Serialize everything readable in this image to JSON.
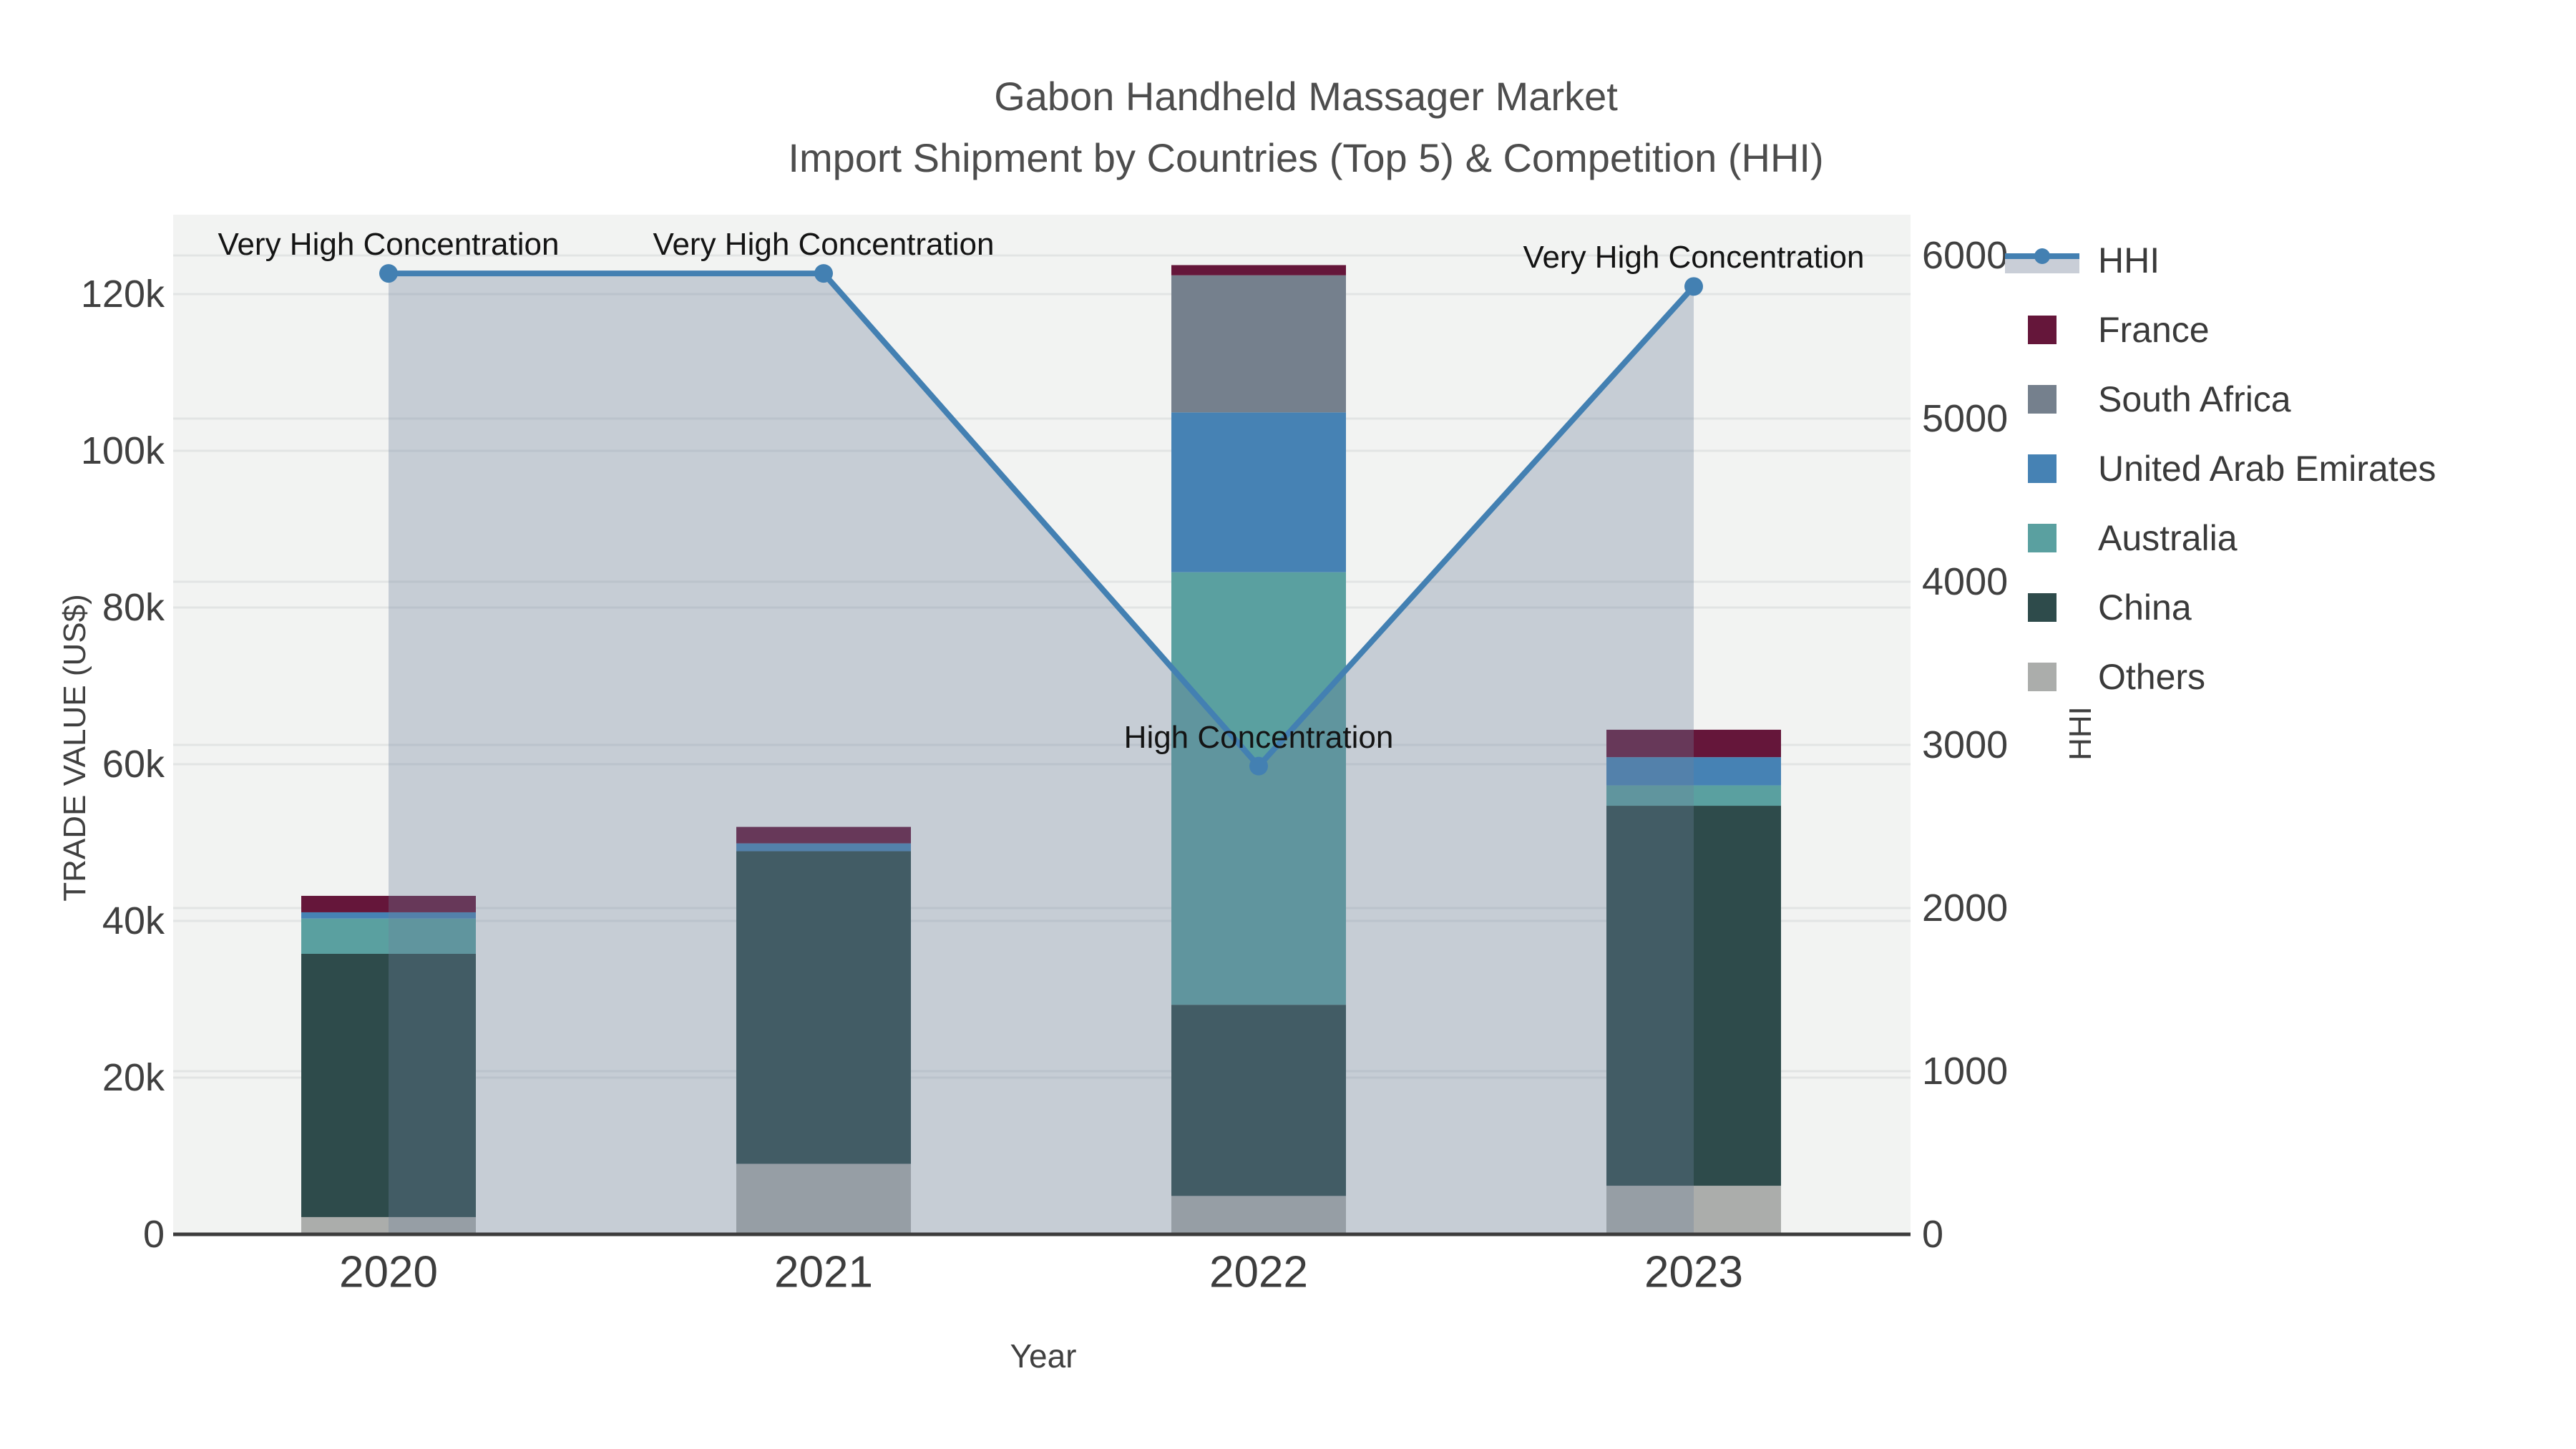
{
  "title": {
    "line1": "Gabon Handheld Massager Market",
    "line2": "Import Shipment by Countries (Top 5) & Competition (HHI)"
  },
  "axes": {
    "left": {
      "title": "TRADE VALUE (US$)",
      "ticks": [
        {
          "v": 0,
          "label": "0"
        },
        {
          "v": 20000,
          "label": "20k"
        },
        {
          "v": 40000,
          "label": "40k"
        },
        {
          "v": 60000,
          "label": "60k"
        },
        {
          "v": 80000,
          "label": "80k"
        },
        {
          "v": 100000,
          "label": "100k"
        },
        {
          "v": 120000,
          "label": "120k"
        }
      ]
    },
    "right": {
      "title": "HHI",
      "ticks": [
        {
          "v": 0,
          "label": "0"
        },
        {
          "v": 1000,
          "label": "1000"
        },
        {
          "v": 2000,
          "label": "2000"
        },
        {
          "v": 3000,
          "label": "3000"
        },
        {
          "v": 4000,
          "label": "4000"
        },
        {
          "v": 5000,
          "label": "5000"
        },
        {
          "v": 6000,
          "label": "6000"
        }
      ]
    },
    "x": {
      "title": "Year"
    }
  },
  "legend": {
    "items": [
      {
        "label": "HHI",
        "type": "line",
        "color": "#4380b2"
      },
      {
        "label": "France",
        "type": "swatch",
        "color": "#65163a"
      },
      {
        "label": "South Africa",
        "type": "swatch",
        "color": "#75808d"
      },
      {
        "label": "United Arab Emirates",
        "type": "swatch",
        "color": "#4682b4"
      },
      {
        "label": "Australia",
        "type": "swatch",
        "color": "#5aa0a0"
      },
      {
        "label": "China",
        "type": "swatch",
        "color": "#2e4b4b"
      },
      {
        "label": "Others",
        "type": "swatch",
        "color": "#abadab"
      }
    ]
  },
  "chart_data": {
    "type": "bar",
    "subtype": "stacked-bar-with-dual-axis-line",
    "title": "Gabon Handheld Massager Market — Import Shipment by Countries (Top 5) & Competition (HHI)",
    "categories": [
      "2020",
      "2021",
      "2022",
      "2023"
    ],
    "xlabel": "Year",
    "ylabel_left": "TRADE VALUE (US$)",
    "ylabel_right": "HHI",
    "ylim_left": [
      0,
      130000
    ],
    "ylim_right": [
      0,
      6250
    ],
    "grid": true,
    "legend_position": "right",
    "series": [
      {
        "name": "Others",
        "color": "#abadab",
        "values": [
          2200,
          9000,
          4900,
          6200
        ]
      },
      {
        "name": "China",
        "color": "#2e4b4b",
        "values": [
          33600,
          39900,
          24400,
          48500
        ]
      },
      {
        "name": "Australia",
        "color": "#5aa0a0",
        "values": [
          4500,
          0,
          55200,
          2600
        ]
      },
      {
        "name": "United Arab Emirates",
        "color": "#4682b4",
        "values": [
          800,
          1000,
          20400,
          3600
        ]
      },
      {
        "name": "South Africa",
        "color": "#75808d",
        "values": [
          0,
          0,
          17500,
          0
        ]
      },
      {
        "name": "France",
        "color": "#65163a",
        "values": [
          2100,
          2100,
          1300,
          3500
        ]
      }
    ],
    "line_series": {
      "name": "HHI",
      "axis": "right",
      "color": "#4380b2",
      "area_fill_color": "#6e7e9a",
      "area_fill_alpha": 0.33,
      "values": [
        5890,
        5890,
        2870,
        5810
      ]
    },
    "annotations": [
      {
        "category_index": 0,
        "text": "Very High Concentration"
      },
      {
        "category_index": 1,
        "text": "Very High Concentration"
      },
      {
        "category_index": 2,
        "text": "High Concentration"
      },
      {
        "category_index": 3,
        "text": "Very High Concentration"
      }
    ]
  }
}
